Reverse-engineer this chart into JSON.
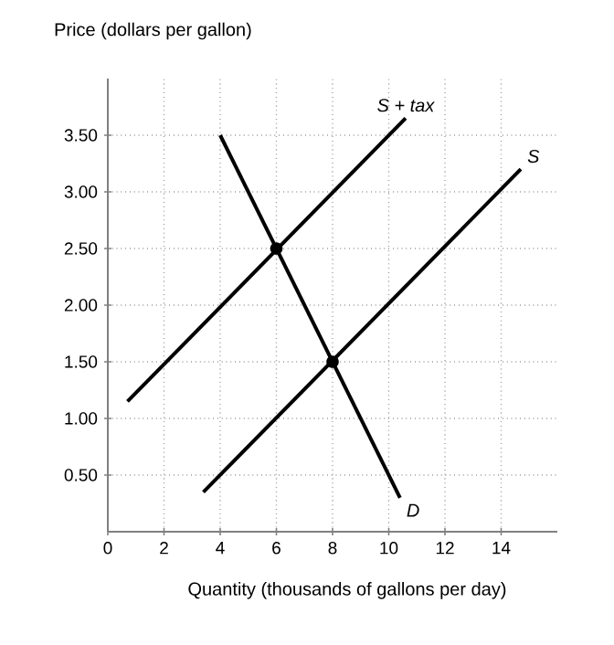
{
  "chart_data": {
    "type": "line",
    "xlabel": "Quantity (thousands of gallons per day)",
    "ylabel": "Price (dollars per gallon)",
    "series": [
      {
        "name": "S + tax",
        "color": "#000000",
        "x": [
          0.7,
          10.6
        ],
        "values": [
          1.15,
          3.65
        ]
      },
      {
        "name": "S",
        "color": "#000000",
        "x": [
          3.4,
          14.7
        ],
        "values": [
          0.35,
          3.2
        ]
      },
      {
        "name": "D",
        "color": "#000000",
        "x": [
          4.0,
          10.4
        ],
        "values": [
          3.5,
          0.3
        ]
      },
      {
        "type": "scatter",
        "marker": "circle",
        "color": "#000000",
        "x": [
          6,
          8
        ],
        "values": [
          2.5,
          1.5
        ]
      }
    ],
    "xlim": [
      0,
      16
    ],
    "ylim": [
      0,
      4
    ],
    "xticks": [
      0,
      2,
      4,
      6,
      8,
      10,
      12,
      14
    ],
    "yticks": [
      {
        "value": 0.5,
        "label": "0.50"
      },
      {
        "value": 1,
        "label": "1.00"
      },
      {
        "value": 1.5,
        "label": "1.50"
      },
      {
        "value": 2,
        "label": "2.00"
      },
      {
        "value": 2.5,
        "label": "2.50"
      },
      {
        "value": 3,
        "label": "3.00"
      },
      {
        "value": 3.5,
        "label": "3.50"
      }
    ],
    "grid": true,
    "line_style": "solid",
    "legend": false
  }
}
